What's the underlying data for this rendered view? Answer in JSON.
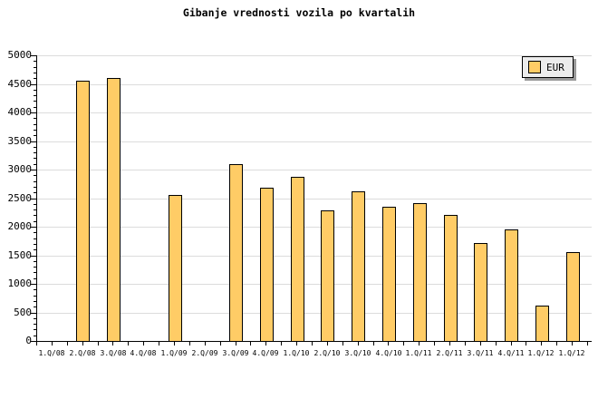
{
  "title": "Gibanje vrednosti vozila po kvartalih",
  "legend": {
    "label": "EUR",
    "position": "top-right"
  },
  "colors": {
    "background": "#FFFFFF",
    "bar_fill": "#FFCC66",
    "bar_border": "#000000",
    "gridline": "#DCDCDC",
    "axis": "#000000",
    "text": "#000000",
    "legend_bg": "#ECECEC",
    "legend_shadow": "#999999"
  },
  "chart_data": {
    "type": "bar",
    "title": "Gibanje vrednosti vozila po kvartalih",
    "xlabel": "",
    "ylabel": "",
    "categories": [
      "1.Q/08",
      "2.Q/08",
      "3.Q/08",
      "4.Q/08",
      "1.Q/09",
      "2.Q/09",
      "3.Q/09",
      "4.Q/09",
      "1.Q/10",
      "2.Q/10",
      "3.Q/10",
      "4.Q/10",
      "1.Q/11",
      "2.Q/11",
      "3.Q/11",
      "4.Q/11",
      "1.Q/12",
      "1.Q/12"
    ],
    "series": [
      {
        "name": "EUR",
        "values": [
          null,
          4550,
          4600,
          null,
          2560,
          null,
          3100,
          2680,
          2880,
          2280,
          2620,
          2350,
          2410,
          2210,
          1710,
          1950,
          620,
          1560
        ]
      }
    ],
    "ylim": [
      0,
      5000
    ],
    "ytick_step": 500,
    "ytick_minor_step": 100,
    "y_tick_labels": [
      "0",
      "500",
      "1000",
      "1500",
      "2000",
      "2500",
      "3000",
      "3500",
      "4000",
      "4500",
      "5000"
    ],
    "grid": "horizontal",
    "legend_position": "top-right"
  }
}
